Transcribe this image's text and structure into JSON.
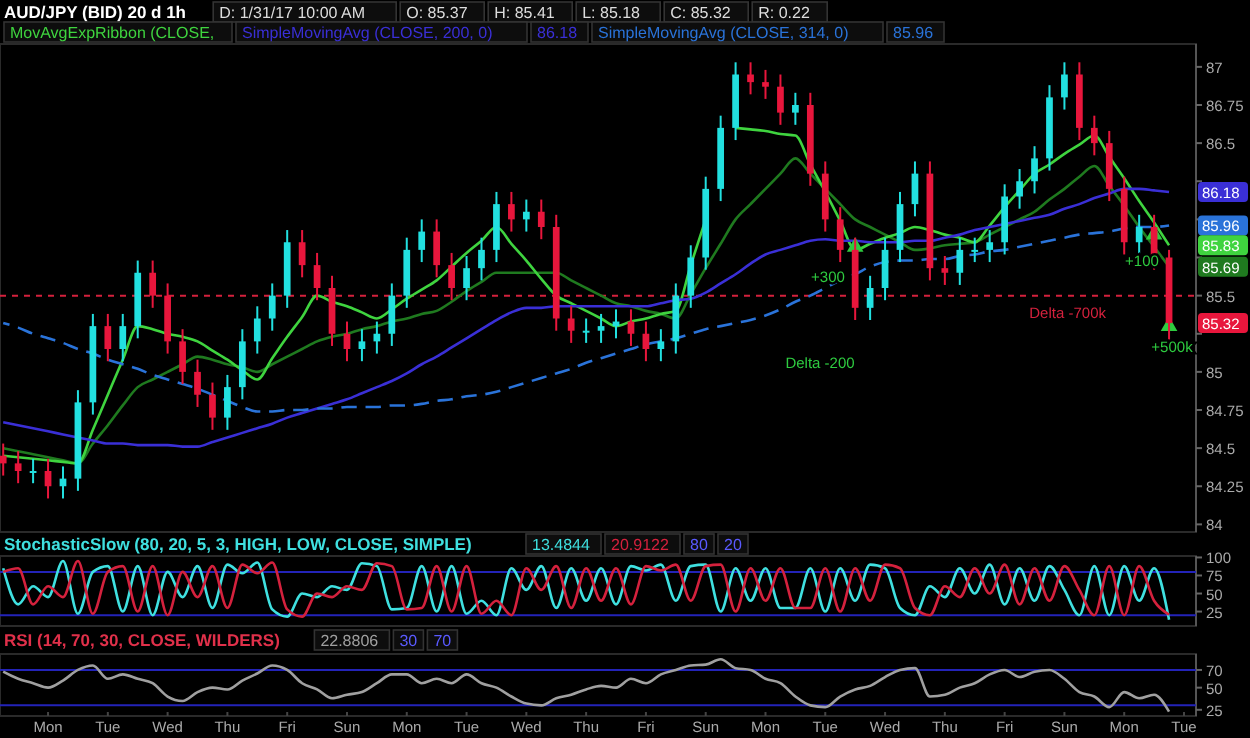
{
  "chart_data": [
    {
      "type": "candlestick",
      "title": "AUD/JPY (BID) 20 d 1h",
      "legend": "top",
      "tick_labels": "y",
      "annotations": [
        "D: 1/31/17 10:00 AM",
        "O: 85.37",
        "H: 85.41",
        "L: 85.18",
        "C: 85.32",
        "R: 0.22",
        "86.18",
        "85.96",
        "Delta -200",
        "+300",
        "+100",
        "+500k",
        {
          "text": "85.32",
          "y": 85.32
        },
        {
          "text": "86.18",
          "y": 86.18
        },
        {
          "text": "85.96",
          "y": 85.96
        },
        {
          "text": "85.83",
          "y": 85.83
        },
        {
          "text": "85.69",
          "y": 85.69
        }
      ],
      "categories": [
        null,
        null,
        null,
        null,
        null,
        null,
        null,
        null,
        null,
        null,
        null,
        null,
        null,
        null,
        null,
        null,
        null,
        null,
        null,
        null,
        null,
        null,
        null,
        null,
        null,
        null,
        null,
        null,
        null,
        null,
        null,
        null,
        null,
        null,
        null,
        null,
        null,
        null,
        null,
        null,
        null,
        null,
        null,
        null,
        null,
        null,
        null,
        null,
        null,
        null,
        null,
        null,
        null,
        null,
        null,
        null,
        null,
        null,
        null,
        null,
        null,
        null,
        null,
        null,
        null,
        null,
        null,
        null,
        null,
        null,
        null,
        null,
        null,
        null,
        null,
        null,
        null,
        null,
        null,
        null
      ],
      "ylim": [
        83.95,
        87.15
      ],
      "yticks": [
        84,
        84.25,
        84.5,
        84.75,
        85,
        {
          "value": 85.25,
          "label": null
        },
        85.5,
        {
          "value": 85.75,
          "label": null
        },
        {
          "value": 86,
          "label": null
        },
        {
          "value": 86.25,
          "label": null
        },
        86.5,
        86.75,
        87
      ],
      "ref_lines": [
        {
          "axis": "y",
          "value": 85.5,
          "label": "Delta -700k",
          "color": "#d4213d",
          "line_style": "dashed"
        }
      ],
      "ohlc": [
        [
          84.45,
          84.53,
          84.32,
          84.4
        ],
        [
          84.4,
          84.48,
          84.27,
          84.35
        ],
        [
          84.35,
          84.43,
          84.27,
          84.35
        ],
        [
          84.35,
          84.43,
          84.17,
          84.25
        ],
        [
          84.25,
          84.38,
          84.17,
          84.3
        ],
        [
          84.3,
          84.88,
          84.22,
          84.8
        ],
        [
          84.8,
          85.38,
          84.72,
          85.3
        ],
        [
          85.3,
          85.38,
          85.07,
          85.15
        ],
        [
          85.15,
          85.38,
          85.07,
          85.3
        ],
        [
          85.3,
          85.73,
          85.22,
          85.65
        ],
        [
          85.65,
          85.73,
          85.42,
          85.5
        ],
        [
          85.5,
          85.58,
          85.12,
          85.2
        ],
        [
          85.2,
          85.28,
          84.92,
          85.0
        ],
        [
          85.0,
          85.08,
          84.77,
          84.85
        ],
        [
          84.85,
          84.93,
          84.62,
          84.7
        ],
        [
          84.7,
          84.98,
          84.62,
          84.9
        ],
        [
          84.9,
          85.28,
          84.82,
          85.2
        ],
        [
          85.2,
          85.43,
          85.12,
          85.35
        ],
        [
          85.35,
          85.58,
          85.27,
          85.5
        ],
        [
          85.5,
          85.93,
          85.42,
          85.85
        ],
        [
          85.85,
          85.93,
          85.62,
          85.7
        ],
        [
          85.7,
          85.78,
          85.47,
          85.55
        ],
        [
          85.55,
          85.63,
          85.17,
          85.25
        ],
        [
          85.25,
          85.33,
          85.07,
          85.15
        ],
        [
          85.15,
          85.28,
          85.07,
          85.2
        ],
        [
          85.2,
          85.33,
          85.12,
          85.25
        ],
        [
          85.25,
          85.58,
          85.17,
          85.5
        ],
        [
          85.5,
          85.88,
          85.42,
          85.8
        ],
        [
          85.8,
          86.0,
          85.72,
          85.92
        ],
        [
          85.92,
          86.0,
          85.62,
          85.7
        ],
        [
          85.7,
          85.78,
          85.47,
          85.55
        ],
        [
          85.55,
          85.76,
          85.47,
          85.68
        ],
        [
          85.68,
          85.88,
          85.6,
          85.8
        ],
        [
          85.8,
          86.18,
          85.72,
          86.1
        ],
        [
          86.1,
          86.18,
          85.92,
          86.0
        ],
        [
          86.0,
          86.13,
          85.92,
          86.05
        ],
        [
          86.05,
          86.13,
          85.87,
          85.95
        ],
        [
          85.95,
          86.03,
          85.27,
          85.35
        ],
        [
          85.35,
          85.43,
          85.19,
          85.27
        ],
        [
          85.27,
          85.35,
          85.19,
          85.27
        ],
        [
          85.27,
          85.38,
          85.19,
          85.3
        ],
        [
          85.3,
          85.41,
          85.22,
          85.33
        ],
        [
          85.33,
          85.41,
          85.17,
          85.25
        ],
        [
          85.25,
          85.33,
          85.07,
          85.15
        ],
        [
          85.15,
          85.28,
          85.07,
          85.2
        ],
        [
          85.2,
          85.58,
          85.12,
          85.5
        ],
        [
          85.5,
          85.83,
          85.42,
          85.75
        ],
        [
          85.75,
          86.28,
          85.67,
          86.2
        ],
        [
          86.2,
          86.68,
          86.12,
          86.6
        ],
        [
          86.6,
          87.03,
          86.52,
          86.95
        ],
        [
          86.95,
          87.03,
          86.82,
          86.9
        ],
        [
          86.9,
          86.98,
          86.79,
          86.87
        ],
        [
          86.87,
          86.95,
          86.62,
          86.7
        ],
        [
          86.7,
          86.83,
          86.62,
          86.75
        ],
        [
          86.75,
          86.83,
          86.22,
          86.3
        ],
        [
          86.3,
          86.38,
          85.92,
          86.0
        ],
        [
          86.0,
          86.08,
          85.72,
          85.8
        ],
        [
          85.8,
          85.88,
          85.34,
          85.42
        ],
        [
          85.42,
          85.63,
          85.34,
          85.55
        ],
        [
          85.55,
          85.88,
          85.47,
          85.8
        ],
        [
          85.8,
          86.18,
          85.72,
          86.1
        ],
        [
          86.1,
          86.38,
          86.02,
          86.3
        ],
        [
          86.3,
          86.38,
          85.6,
          85.68
        ],
        [
          85.68,
          85.76,
          85.57,
          85.65
        ],
        [
          85.65,
          85.88,
          85.57,
          85.8
        ],
        [
          85.8,
          85.88,
          85.72,
          85.8
        ],
        [
          85.8,
          85.93,
          85.72,
          85.85
        ],
        [
          85.85,
          86.23,
          85.77,
          86.15
        ],
        [
          86.15,
          86.33,
          86.07,
          86.25
        ],
        [
          86.25,
          86.48,
          86.17,
          86.4
        ],
        [
          86.4,
          86.88,
          86.32,
          86.8
        ],
        [
          86.8,
          87.03,
          86.72,
          86.95
        ],
        [
          86.95,
          87.03,
          86.52,
          86.6
        ],
        [
          86.6,
          86.68,
          86.42,
          86.5
        ],
        [
          86.5,
          86.58,
          86.12,
          86.2
        ],
        [
          86.2,
          86.28,
          85.77,
          85.85
        ],
        [
          85.85,
          86.03,
          85.77,
          85.95
        ],
        [
          85.95,
          86.03,
          85.67,
          85.75
        ],
        [
          85.75,
          85.8,
          85.18,
          85.32
        ],
        null
      ],
      "series": [
        {
          "type": "line",
          "color": "#1f7a1f",
          "values": [
            84.5,
            84.48,
            84.46,
            84.44,
            84.42,
            84.4,
            84.53,
            84.65,
            84.78,
            84.9,
            84.95,
            85.0,
            85.05,
            85.1,
            85.08,
            85.05,
            85.03,
            85.0,
            85.05,
            85.1,
            85.15,
            85.2,
            85.23,
            85.25,
            85.28,
            85.3,
            85.33,
            85.35,
            85.38,
            85.4,
            85.46,
            85.53,
            85.59,
            85.65,
            85.65,
            85.65,
            85.65,
            85.65,
            85.6,
            85.55,
            85.5,
            85.45,
            85.43,
            85.4,
            85.38,
            85.35,
            85.51,
            85.68,
            85.84,
            86.0,
            86.1,
            86.2,
            86.3,
            86.4,
            86.3,
            86.2,
            86.1,
            86.0,
            85.95,
            85.9,
            85.85,
            85.8,
            85.81,
            85.83,
            85.84,
            85.85,
            85.9,
            85.95,
            86.0,
            86.05,
            86.13,
            86.2,
            86.28,
            86.35,
            86.22,
            86.09,
            85.95,
            85.82,
            85.69,
            null
          ]
        },
        {
          "type": "line",
          "name": "MovAvgExpRibbon (CLOSE, ",
          "color": "#3fd43f",
          "values": [
            84.45,
            84.44,
            84.43,
            84.42,
            84.41,
            84.4,
            84.62,
            84.85,
            85.08,
            85.3,
            85.28,
            85.25,
            85.23,
            85.2,
            85.14,
            85.08,
            85.01,
            84.95,
            85.09,
            85.23,
            85.36,
            85.5,
            85.46,
            85.43,
            85.39,
            85.35,
            85.41,
            85.48,
            85.54,
            85.6,
            85.69,
            85.78,
            85.86,
            85.95,
            85.84,
            85.73,
            85.61,
            85.5,
            85.45,
            85.4,
            85.35,
            85.3,
            85.33,
            85.35,
            85.38,
            85.4,
            85.7,
            86.0,
            null,
            86.6,
            86.59,
            86.58,
            86.56,
            86.55,
            86.36,
            86.18,
            85.99,
            85.8,
            85.84,
            85.88,
            85.91,
            85.95,
            85.93,
            85.9,
            85.88,
            85.85,
            85.96,
            86.08,
            86.19,
            86.3,
            86.36,
            86.43,
            86.49,
            86.55,
            86.41,
            86.27,
            86.12,
            85.98,
            85.83,
            null
          ]
        },
        {
          "type": "line",
          "name": "SimpleMovingAvg (CLOSE, 200, 0)",
          "color": "#3a2fd6",
          "values": [
            84.67,
            84.65,
            84.63,
            84.61,
            84.59,
            84.57,
            84.55,
            84.53,
            84.53,
            84.52,
            84.52,
            84.52,
            84.51,
            84.51,
            84.54,
            84.57,
            84.6,
            84.63,
            84.66,
            84.7,
            84.73,
            84.76,
            84.79,
            84.82,
            84.86,
            84.9,
            84.94,
            84.99,
            85.05,
            85.1,
            85.16,
            85.22,
            85.28,
            85.34,
            85.39,
            85.42,
            85.42,
            85.43,
            85.43,
            85.43,
            85.43,
            85.43,
            85.43,
            85.43,
            85.45,
            85.47,
            85.48,
            85.52,
            85.58,
            85.64,
            85.71,
            85.77,
            85.8,
            85.83,
            85.86,
            85.87,
            85.86,
            85.86,
            85.85,
            85.85,
            85.85,
            85.86,
            85.86,
            85.88,
            85.9,
            85.93,
            85.95,
            85.97,
            85.99,
            86.01,
            86.03,
            86.07,
            86.1,
            86.14,
            86.17,
            86.2,
            86.2,
            86.19,
            86.18,
            null
          ]
        },
        {
          "type": "line",
          "name": "SimpleMovingAvg (CLOSE, 314, 0)",
          "color": "#2a73d9",
          "line_style": "dashed",
          "values": [
            85.32,
            85.29,
            85.25,
            85.22,
            85.19,
            85.15,
            85.12,
            85.08,
            85.05,
            85.02,
            84.98,
            84.95,
            84.92,
            84.89,
            84.85,
            84.81,
            84.77,
            84.74,
            84.74,
            84.75,
            84.75,
            84.76,
            84.76,
            84.77,
            84.77,
            84.77,
            84.78,
            84.78,
            84.79,
            84.81,
            84.82,
            84.84,
            84.85,
            84.87,
            84.9,
            84.93,
            84.96,
            84.99,
            85.02,
            85.06,
            85.09,
            85.12,
            85.15,
            85.18,
            85.2,
            85.22,
            85.25,
            85.28,
            85.3,
            85.32,
            85.34,
            85.37,
            85.41,
            85.46,
            85.5,
            85.55,
            85.6,
            85.64,
            85.69,
            85.72,
            85.73,
            85.73,
            85.74,
            85.74,
            85.76,
            85.77,
            85.79,
            85.8,
            85.82,
            85.84,
            85.86,
            85.88,
            85.9,
            85.91,
            85.92,
            85.94,
            85.95,
            85.95,
            85.96,
            null
          ]
        },
        {
          "type": "scatter",
          "color": "#2ecc40",
          "marker": "triangle",
          "values": [
            null,
            null,
            null,
            null,
            null,
            null,
            null,
            null,
            null,
            null,
            null,
            null,
            null,
            null,
            null,
            null,
            null,
            null,
            null,
            null,
            null,
            null,
            null,
            null,
            null,
            null,
            null,
            null,
            null,
            null,
            null,
            null,
            null,
            null,
            null,
            null,
            null,
            null,
            null,
            null,
            null,
            null,
            null,
            null,
            null,
            null,
            null,
            null,
            null,
            null,
            null,
            null,
            null,
            null,
            null,
            null,
            null,
            85.82,
            null,
            null,
            null,
            null,
            null,
            null,
            null,
            null,
            null,
            null,
            null,
            null,
            null,
            null,
            null,
            null,
            null,
            null,
            null,
            85.9,
            85.3,
            null
          ]
        }
      ]
    },
    {
      "type": "line",
      "title": "StochasticSlow (80, 20, 5, 3, HIGH, LOW, CLOSE, SIMPLE)",
      "tick_labels": "y",
      "annotations": [
        "13.4844",
        "20.9122",
        "80",
        "20"
      ],
      "categories": [
        null,
        null,
        null,
        null,
        null,
        null,
        null,
        null,
        null,
        null,
        null,
        null,
        null,
        null,
        null,
        null,
        null,
        null,
        null,
        null,
        null,
        null,
        null,
        null,
        null,
        null,
        null,
        null,
        null,
        null,
        null,
        null,
        null,
        null,
        null,
        null,
        null,
        null,
        null,
        null,
        null,
        null,
        null,
        null,
        null,
        null,
        null,
        null,
        null,
        null,
        null,
        null,
        null,
        null,
        null,
        null,
        null,
        null,
        null,
        null,
        null,
        null,
        null,
        null,
        null,
        null,
        null,
        null,
        null,
        null,
        null,
        null,
        null,
        null,
        null,
        null,
        null,
        null,
        null,
        null
      ],
      "ylim": [
        5,
        102
      ],
      "yticks": [
        25,
        50,
        75,
        100
      ],
      "ref_lines": [
        {
          "axis": "y",
          "value": 80,
          "color": "#2323b8"
        },
        {
          "axis": "y",
          "value": 20,
          "color": "#2323b8"
        }
      ],
      "series": [
        {
          "color": "#3fe0e0",
          "values": [
            85,
            35,
            60,
            45,
            95,
            22,
            80,
            88,
            25,
            88,
            20,
            80,
            45,
            88,
            30,
            90,
            78,
            93,
            28,
            18,
            50,
            45,
            60,
            55,
            92,
            88,
            28,
            30,
            88,
            25,
            88,
            22,
            40,
            20,
            85,
            55,
            88,
            30,
            85,
            40,
            85,
            35,
            88,
            82,
            90,
            40,
            88,
            90,
            25,
            85,
            40,
            85,
            30,
            30,
            85,
            25,
            85,
            40,
            90,
            85,
            30,
            20,
            60,
            45,
            85,
            50,
            90,
            35,
            85,
            40,
            88,
            55,
            20,
            88,
            20,
            88,
            40,
            85,
            13.5,
            null
          ]
        },
        {
          "color": "#d4213d",
          "values": [
            80,
            85,
            35,
            60,
            45,
            95,
            22,
            80,
            88,
            25,
            88,
            20,
            80,
            45,
            88,
            30,
            90,
            78,
            93,
            28,
            18,
            50,
            45,
            60,
            55,
            92,
            88,
            28,
            30,
            88,
            25,
            88,
            22,
            40,
            20,
            85,
            55,
            88,
            30,
            85,
            40,
            85,
            35,
            88,
            82,
            90,
            40,
            88,
            90,
            25,
            85,
            40,
            85,
            30,
            30,
            85,
            25,
            85,
            40,
            90,
            85,
            30,
            20,
            60,
            45,
            85,
            50,
            90,
            35,
            85,
            40,
            88,
            55,
            20,
            88,
            20,
            88,
            40,
            20.9,
            null
          ]
        }
      ]
    },
    {
      "type": "line",
      "title": "RSI (14, 70, 30, CLOSE, WILDERS)",
      "annotations": [
        "22.8806",
        "30",
        "70"
      ],
      "categories": [
        null,
        null,
        null,
        "Mon",
        null,
        null,
        null,
        "Tue",
        null,
        null,
        null,
        "Wed",
        null,
        null,
        null,
        "Thu",
        null,
        null,
        null,
        "Fri",
        null,
        null,
        null,
        "Sun",
        null,
        null,
        null,
        "Mon",
        null,
        null,
        null,
        "Tue",
        null,
        null,
        null,
        "Wed",
        null,
        null,
        null,
        "Thu",
        null,
        null,
        null,
        "Fri",
        null,
        null,
        null,
        "Sun",
        null,
        null,
        null,
        "Mon",
        null,
        null,
        null,
        "Tue",
        null,
        null,
        null,
        "Wed",
        null,
        null,
        null,
        "Thu",
        null,
        null,
        null,
        "Fri",
        null,
        null,
        null,
        "Sun",
        null,
        null,
        null,
        "Mon",
        null,
        null,
        null,
        "Tue"
      ],
      "ylim": [
        18,
        88
      ],
      "yticks": [
        25,
        50,
        70
      ],
      "ref_lines": [
        {
          "axis": "y",
          "value": 30,
          "color": "#2323b8"
        },
        {
          "axis": "y",
          "value": 70,
          "color": "#2323b8"
        }
      ],
      "series": [
        {
          "color": "#a0a0a0",
          "values": [
            68,
            60,
            55,
            50,
            58,
            70,
            75,
            60,
            65,
            60,
            55,
            40,
            35,
            45,
            50,
            48,
            58,
            66,
            75,
            70,
            55,
            48,
            38,
            42,
            45,
            55,
            65,
            65,
            55,
            60,
            55,
            65,
            55,
            50,
            40,
            32,
            30,
            38,
            42,
            48,
            52,
            50,
            60,
            55,
            65,
            70,
            75,
            76,
            82,
            72,
            70,
            60,
            55,
            40,
            30,
            28,
            40,
            48,
            52,
            62,
            70,
            72,
            40,
            42,
            50,
            55,
            65,
            70,
            62,
            68,
            70,
            60,
            45,
            40,
            28,
            45,
            38,
            42,
            22.9,
            null
          ]
        }
      ]
    }
  ]
}
